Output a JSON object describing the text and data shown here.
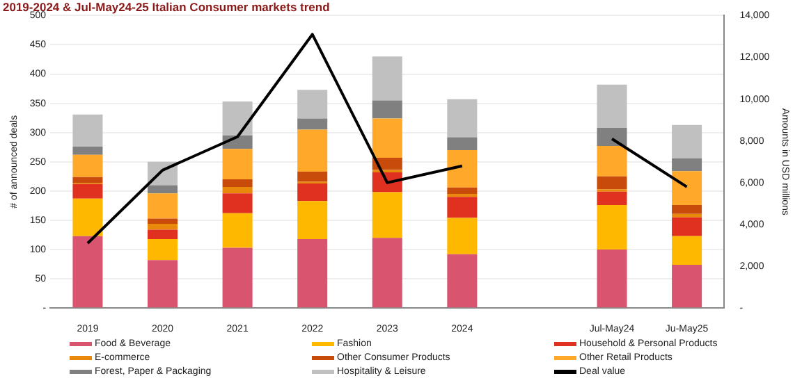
{
  "chart_data": {
    "type": "bar",
    "title": "2019-2024 & Jul-May24-25 Italian Consumer markets trend",
    "ylabel": "# of announced deals",
    "y2label": "Amounts in USD millions",
    "stacked": true,
    "grid": "y",
    "legend": "bottom",
    "categories": [
      "2019",
      "2020",
      "2021",
      "2022",
      "2023",
      "2024",
      null,
      "Jul-May24",
      "Ju-May25"
    ],
    "ylim": [
      0,
      500
    ],
    "yticks": [
      {
        "value": 0,
        "label": "-"
      },
      50,
      100,
      150,
      200,
      250,
      300,
      350,
      400,
      450,
      500
    ],
    "y2lim": [
      0,
      14000
    ],
    "y2ticks": [
      {
        "value": 0,
        "label": "-"
      },
      {
        "value": 2000,
        "label": "2,000"
      },
      {
        "value": 4000,
        "label": "4,000"
      },
      {
        "value": 6000,
        "label": "6,000"
      },
      {
        "value": 8000,
        "label": "8,000"
      },
      {
        "value": 10000,
        "label": "10,000"
      },
      {
        "value": 12000,
        "label": "12,000"
      },
      {
        "value": 14000,
        "label": "14,000"
      }
    ],
    "series": [
      {
        "name": "Food & Beverage",
        "color": "#d9546e",
        "values": [
          123,
          82,
          103,
          118,
          120,
          92,
          null,
          100,
          74
        ]
      },
      {
        "name": "Fashion",
        "color": "#ffb800",
        "values": [
          64,
          36,
          59,
          65,
          78,
          62,
          null,
          76,
          49
        ]
      },
      {
        "name": "Household & Personal Products",
        "color": "#e03020",
        "values": [
          25,
          16,
          34,
          30,
          34,
          36,
          null,
          23,
          32
        ]
      },
      {
        "name": "E-commerce",
        "color": "#e8890c",
        "values": [
          2,
          10,
          11,
          3,
          4,
          5,
          null,
          4,
          6
        ]
      },
      {
        "name": "Other Consumer Products",
        "color": "#c84b0c",
        "values": [
          10,
          9,
          13,
          17,
          21,
          11,
          null,
          22,
          15
        ]
      },
      {
        "name": "Other Retail Products",
        "color": "#ffa82a",
        "values": [
          38,
          43,
          52,
          72,
          67,
          64,
          null,
          52,
          58
        ]
      },
      {
        "name": "Forest, Paper & Packaging",
        "color": "#808080",
        "values": [
          14,
          14,
          23,
          19,
          31,
          22,
          null,
          31,
          22
        ]
      },
      {
        "name": "Hospitality & Leisure",
        "color": "#c0c0c0",
        "values": [
          55,
          40,
          58,
          49,
          75,
          65,
          null,
          74,
          57
        ]
      },
      {
        "name": "Deal value",
        "color": "#000000",
        "type": "line",
        "axis": "y2",
        "values": [
          3100,
          6600,
          8200,
          13100,
          6000,
          6800,
          null,
          8100,
          5800
        ]
      }
    ]
  }
}
